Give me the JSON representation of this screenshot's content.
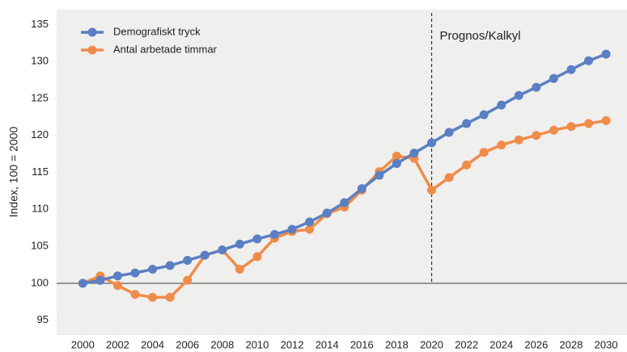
{
  "chart_data": {
    "type": "line",
    "y_label": "Index, 100 = 2000",
    "annotation": "Prognos/Kalkyl",
    "x": [
      2000,
      2001,
      2002,
      2003,
      2004,
      2005,
      2006,
      2007,
      2008,
      2009,
      2010,
      2011,
      2012,
      2013,
      2014,
      2015,
      2016,
      2017,
      2018,
      2019,
      2020,
      2021,
      2022,
      2023,
      2024,
      2025,
      2026,
      2027,
      2028,
      2029,
      2030
    ],
    "series": [
      {
        "name": "Demografiskt tryck",
        "color": "#5b7fc3",
        "values": [
          100,
          100.4,
          101,
          101.4,
          101.9,
          102.4,
          103.1,
          103.8,
          104.5,
          105.3,
          106,
          106.6,
          107.3,
          108.3,
          109.5,
          110.9,
          112.8,
          114.6,
          116.2,
          117.6,
          119,
          120.4,
          121.6,
          122.8,
          124.1,
          125.4,
          126.5,
          127.7,
          128.9,
          130.1,
          131
        ]
      },
      {
        "name": "Antal arbetade timmar",
        "color": "#f08c4a",
        "values": [
          100,
          101,
          99.7,
          98.5,
          98.1,
          98.1,
          100.4,
          103.8,
          104.5,
          101.9,
          103.6,
          106.1,
          107,
          107.3,
          109.4,
          110.3,
          112.6,
          115.1,
          117.2,
          116.9,
          112.6,
          114.3,
          116,
          117.7,
          118.7,
          119.4,
          120,
          120.7,
          121.2,
          121.6,
          122
        ]
      }
    ],
    "xlim": [
      1998.5,
      2031.2
    ],
    "ylim": [
      93,
      137
    ],
    "xticks": [
      2000,
      2002,
      2004,
      2006,
      2008,
      2010,
      2012,
      2014,
      2016,
      2018,
      2020,
      2022,
      2024,
      2026,
      2028,
      2030
    ],
    "yticks": [
      95,
      100,
      105,
      110,
      115,
      120,
      125,
      130,
      135
    ],
    "hline": 100,
    "vline": 2020,
    "legend": "upper left"
  }
}
